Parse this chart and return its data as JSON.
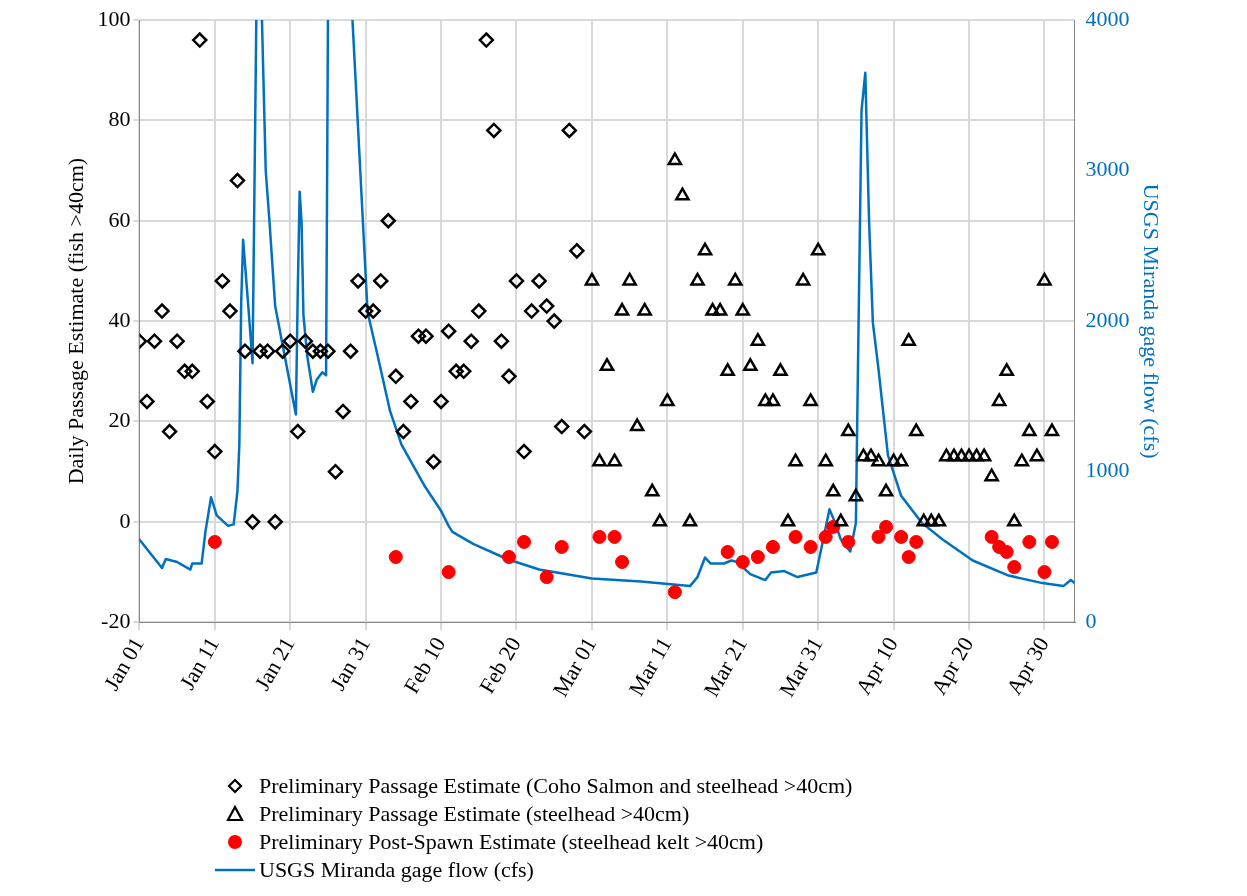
{
  "chart_data": {
    "type": "scatter",
    "ylabel": "Daily Passage Estimate (fish >40cm)",
    "y2label": "USGS Miranda gage flow (cfs)",
    "xlim": [
      "--01-01",
      "--05-04"
    ],
    "xticks": [
      {
        "value": "--01-01",
        "label": "Jan 01"
      },
      {
        "value": "--01-11",
        "label": "Jan 11"
      },
      {
        "value": "--01-21",
        "label": "Jan 21"
      },
      {
        "value": "--01-31",
        "label": "Jan 31"
      },
      {
        "value": "--02-10",
        "label": "Feb 10"
      },
      {
        "value": "--02-20",
        "label": "Feb 20"
      },
      {
        "value": "--03-01",
        "label": "Mar 01"
      },
      {
        "value": "--03-11",
        "label": "Mar 11"
      },
      {
        "value": "--03-21",
        "label": "Mar 21"
      },
      {
        "value": "--03-31",
        "label": "Mar 31"
      },
      {
        "value": "--04-10",
        "label": "Apr 10"
      },
      {
        "value": "--04-20",
        "label": "Apr 20"
      },
      {
        "value": "--04-30",
        "label": "Apr 30"
      }
    ],
    "ylim": [
      -20,
      100
    ],
    "yticks": [
      -20,
      0,
      20,
      40,
      60,
      80,
      100
    ],
    "y2lim": [
      0,
      4000
    ],
    "y2ticks": [
      0,
      1000,
      2000,
      3000,
      4000
    ],
    "grid": true,
    "legend": "bottom",
    "series": [
      {
        "name": "Preliminary Passage Estimate (Coho Salmon and steelhead >40cm)",
        "type": "scatter",
        "marker": "diamond",
        "color": "#000000",
        "x": [
          "--01-01",
          "--01-02",
          "--01-03",
          "--01-04",
          "--01-05",
          "--01-06",
          "--01-07",
          "--01-08",
          "--01-09",
          "--01-10",
          "--01-11",
          "--01-12",
          "--01-13",
          "--01-14",
          "--01-15",
          "--01-16",
          "--01-17",
          "--01-18",
          "--01-19",
          "--01-20",
          "--01-21",
          "--01-22",
          "--01-23",
          "--01-24",
          "--01-25",
          "--01-26",
          "--01-27",
          "--01-28",
          "--01-29",
          "--01-30",
          "--01-31",
          "--02-01",
          "--02-02",
          "--02-03",
          "--02-04",
          "--02-05",
          "--02-06",
          "--02-07",
          "--02-08",
          "--02-09",
          "--02-10",
          "--02-11",
          "--02-12",
          "--02-13",
          "--02-14",
          "--02-15",
          "--02-16",
          "--02-17",
          "--02-18",
          "--02-19",
          "--02-20",
          "--02-21",
          "--02-22",
          "--02-23",
          "--02-24",
          "--02-25",
          "--02-26",
          "--02-27",
          "--02-28",
          "--02-29"
        ],
        "values": [
          36,
          24,
          36,
          42,
          18,
          36,
          30,
          30,
          96,
          24,
          14,
          48,
          42,
          68,
          34,
          0,
          34,
          34,
          0,
          34,
          36,
          18,
          36,
          34,
          34,
          34,
          10,
          22,
          34,
          48,
          42,
          42,
          48,
          60,
          29,
          18,
          24,
          37,
          37,
          12,
          24,
          38,
          30,
          30,
          36,
          42,
          96,
          78,
          36,
          29,
          48,
          14,
          42,
          48,
          43,
          40,
          19,
          78,
          54,
          18
        ]
      },
      {
        "name": "Preliminary Passage Estimate (steelhead >40cm)",
        "type": "scatter",
        "marker": "triangle",
        "color": "#000000",
        "x": [
          "--03-01",
          "--03-02",
          "--03-03",
          "--03-04",
          "--03-05",
          "--03-06",
          "--03-07",
          "--03-08",
          "--03-09",
          "--03-10",
          "--03-11",
          "--03-12",
          "--03-13",
          "--03-14",
          "--03-15",
          "--03-16",
          "--03-17",
          "--03-18",
          "--03-19",
          "--03-20",
          "--03-21",
          "--03-22",
          "--03-23",
          "--03-24",
          "--03-25",
          "--03-26",
          "--03-27",
          "--03-28",
          "--03-29",
          "--03-30",
          "--03-31",
          "--04-01",
          "--04-02",
          "--04-03",
          "--04-04",
          "--04-05",
          "--04-06",
          "--04-07",
          "--04-08",
          "--04-09",
          "--04-10",
          "--04-11",
          "--04-12",
          "--04-13",
          "--04-14",
          "--04-15",
          "--04-16",
          "--04-17",
          "--04-18",
          "--04-19",
          "--04-20",
          "--04-21",
          "--04-22",
          "--04-23",
          "--04-24",
          "--04-25",
          "--04-26",
          "--04-27",
          "--04-28",
          "--04-29",
          "--04-30",
          "--05-01"
        ],
        "values": [
          48,
          12,
          31,
          12,
          42,
          48,
          19,
          42,
          6,
          0,
          24,
          72,
          65,
          0,
          48,
          54,
          42,
          42,
          30,
          48,
          42,
          31,
          36,
          24,
          24,
          30,
          0,
          12,
          48,
          24,
          54,
          12,
          6,
          0,
          18,
          5,
          13,
          13,
          12,
          6,
          12,
          12,
          36,
          18,
          0,
          0,
          0,
          13,
          13,
          13,
          13,
          13,
          13,
          9,
          24,
          30,
          0,
          12,
          18,
          13,
          48,
          18
        ]
      },
      {
        "name": "Preliminary Post-Spawn Estimate (steelhead kelt >40cm)",
        "type": "scatter",
        "marker": "circle",
        "color": "#ff0000",
        "x": [
          "--01-11",
          "--02-04",
          "--02-11",
          "--02-19",
          "--02-21",
          "--02-24",
          "--02-26",
          "--03-02",
          "--03-04",
          "--03-05",
          "--03-12",
          "--03-19",
          "--03-21",
          "--03-23",
          "--03-25",
          "--03-28",
          "--03-30",
          "--04-01",
          "--04-02",
          "--04-04",
          "--04-08",
          "--04-09",
          "--04-11",
          "--04-12",
          "--04-13",
          "--04-23",
          "--04-24",
          "--04-25",
          "--04-26",
          "--04-28",
          "--04-30",
          "--05-01"
        ],
        "values": [
          -4,
          -7,
          -10,
          -7,
          -4,
          -11,
          -5,
          -3,
          -3,
          -8,
          -14,
          -6,
          -8,
          -7,
          -5,
          -3,
          -5,
          -3,
          -1,
          -4,
          -3,
          -1,
          -3,
          -7,
          -4,
          -3,
          -5,
          -6,
          -9,
          -4,
          -10,
          -4
        ]
      },
      {
        "name": "USGS Miranda gage flow (cfs)",
        "type": "line",
        "marker": "none",
        "line_style": "solid",
        "axis": "y2",
        "color": "#0070c0",
        "x": [
          "--01-01",
          "--01-04",
          "--01-04T12:00",
          "--01-06",
          "--01-07T18:00",
          "--01-08",
          "--01-09T06:00",
          "--01-09T18:00",
          "--01-10T12:00",
          "--01-11T06:00",
          "--01-12T18:00",
          "--01-13T12:00",
          "--01-14",
          "--01-14T06:00",
          "--01-14T12:00",
          "--01-14T18:00",
          "--01-15T12:00",
          "--01-16",
          "--01-16T12:00",
          "--01-17",
          "--01-17T06:00",
          "--01-17T18:00",
          "--01-18T06:00",
          "--01-19",
          "--01-21T18:00",
          "--01-22",
          "--01-22T06:00",
          "--01-22T12:00",
          "--01-22T18:00",
          "--01-23T06:00",
          "--01-24",
          "--01-24T12:00",
          "--01-25T06:00",
          "--01-25T18:00",
          "--01-26",
          "--01-27",
          "--01-29T06:00",
          "--01-29T18:00",
          "--01-31T06:00",
          "--02-01T12:00",
          "--02-03T06:00",
          "--02-04T18:00",
          "--02-07T18:00",
          "--02-10",
          "--02-11",
          "--02-11T12:00",
          "--02-14T06:00",
          "--02-18T18:00",
          "--02-23",
          "--03-01",
          "--03-07T12:00",
          "--03-14",
          "--03-15",
          "--03-16",
          "--03-16T18:00",
          "--03-18T12:00",
          "--03-19T12:00",
          "--03-20T06:00",
          "--03-22",
          "--03-24",
          "--03-24T18:00",
          "--03-26T12:00",
          "--03-28T06:00",
          "--03-30T18:00",
          "--03-31T12:00",
          "--04-01T12:00",
          "--04-02T06:00",
          "--04-03",
          "--04-04T06:00",
          "--04-05",
          "--04-05T06:00",
          "--04-05T18:00",
          "--04-06T06:00",
          "--04-06T18:00",
          "--04-07T06:00",
          "--04-08",
          "--04-09T06:00",
          "--04-11",
          "--04-13T18:00",
          "--04-16T12:00",
          "--04-20T12:00",
          "--04-25T06:00",
          "--04-29T18:00",
          "--05-02T12:00",
          "--05-03T12:00",
          "--05-04"
        ],
        "values": [
          550,
          360,
          420,
          400,
          350,
          390,
          390,
          600,
          830,
          710,
          640,
          650,
          870,
          1180,
          2130,
          2540,
          2060,
          1720,
          4000,
          null,
          4000,
          3000,
          2660,
          2100,
          1380,
          2210,
          2860,
          2660,
          2040,
          1770,
          1530,
          1610,
          1660,
          1640,
          4000,
          null,
          4000,
          3520,
          2060,
          1790,
          1400,
          1180,
          910,
          740,
          640,
          600,
          520,
          420,
          350,
          290,
          270,
          240,
          300,
          430,
          390,
          390,
          410,
          400,
          320,
          280,
          330,
          340,
          300,
          330,
          510,
          750,
          660,
          550,
          470,
          660,
          1600,
          3400,
          3650,
          2660,
          1990,
          1680,
          1110,
          840,
          660,
          550,
          410,
          310,
          260,
          240,
          280,
          260
        ]
      }
    ]
  }
}
